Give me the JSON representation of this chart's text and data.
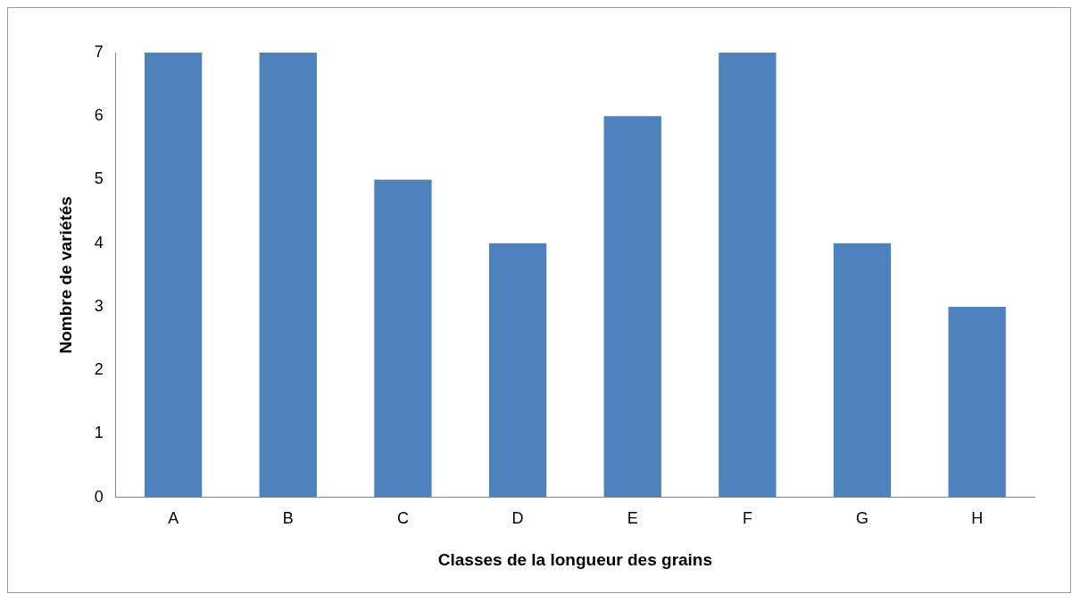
{
  "chart_data": {
    "type": "bar",
    "xlabel": "Classes de la longueur des grains",
    "ylabel": "Nombre de variétés",
    "categories": [
      "A",
      "B",
      "C",
      "D",
      "E",
      "F",
      "G",
      "H"
    ],
    "values": [
      7,
      7,
      5,
      4,
      6,
      7,
      4,
      3
    ],
    "color": "#4f81bd",
    "ylim": [
      0,
      7
    ],
    "yticks": [
      0,
      1,
      2,
      3,
      4,
      5,
      6,
      7
    ],
    "grid": false,
    "legend": false
  }
}
